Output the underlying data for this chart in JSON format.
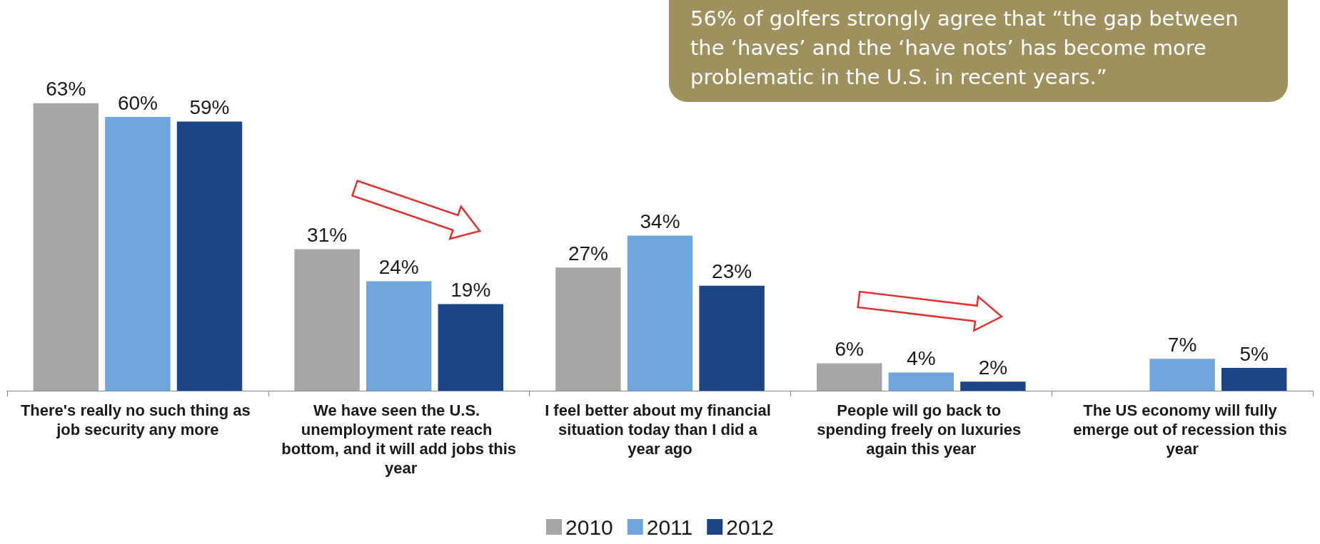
{
  "chart_data": {
    "type": "bar",
    "categories": [
      "There's really no such thing as job security any more",
      "We have seen the U.S. unemployment rate reach bottom, and it will add jobs this year",
      "I feel better about my financial situation today than I did a year ago",
      "People will go back to spending freely on luxuries again this year",
      "The US economy will fully emerge out of recession this year"
    ],
    "series": [
      {
        "name": "2010",
        "color": "#a6a6a6",
        "values": [
          63,
          31,
          27,
          6,
          null
        ],
        "value_labels": [
          "63%",
          "31%",
          "27%",
          "6%",
          null
        ]
      },
      {
        "name": "2011",
        "color": "#6fa6dd",
        "values": [
          60,
          24,
          34,
          4,
          7
        ],
        "value_labels": [
          "60%",
          "24%",
          "34%",
          "4%",
          "7%"
        ]
      },
      {
        "name": "2012",
        "color": "#1c4587",
        "values": [
          59,
          19,
          23,
          2,
          5
        ],
        "value_labels": [
          "59%",
          "19%",
          "23%",
          "2%",
          "5%"
        ]
      }
    ],
    "annotations": [
      "56% of golfers strongly agree that “the gap between the ‘haves’ and the ‘have nots’ has become more problematic in the U.S. in recent years.”"
    ],
    "legend": "bottom"
  }
}
